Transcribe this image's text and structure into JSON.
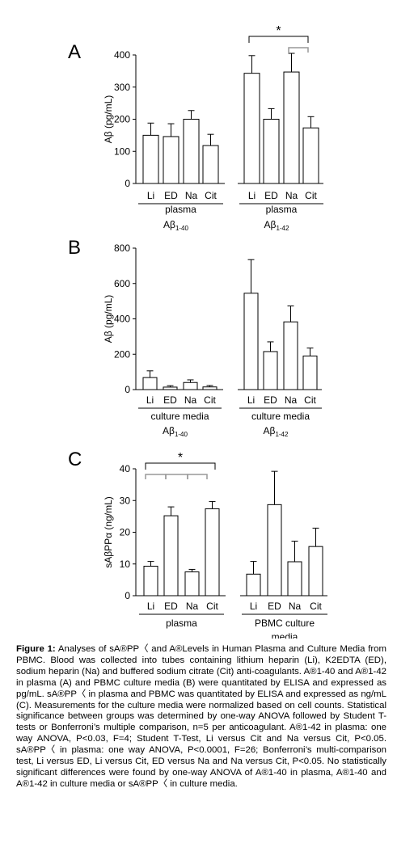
{
  "chart_data": [
    {
      "type": "bar",
      "panel": "A",
      "ylabel": "Aβ (pg/mL)",
      "ylim": [
        0,
        400
      ],
      "yticks": [
        "0",
        "100",
        "200",
        "300",
        "400"
      ],
      "categories": [
        "Li",
        "ED",
        "Na",
        "Cit"
      ],
      "groups": [
        {
          "label": "plasma",
          "sublabel": "Aβ",
          "sub": "1-40",
          "values": [
            150,
            146,
            200,
            118
          ],
          "errors": [
            38,
            40,
            27,
            35
          ]
        },
        {
          "label": "plasma",
          "sublabel": "Aβ",
          "sub": "1-42",
          "values": [
            343,
            200,
            347,
            173
          ],
          "errors": [
            55,
            33,
            58,
            35
          ]
        }
      ],
      "significance": "*"
    },
    {
      "type": "bar",
      "panel": "B",
      "ylabel": "Aβ (pg/mL)",
      "ylim": [
        0,
        800
      ],
      "yticks": [
        "0",
        "200",
        "400",
        "600",
        "800"
      ],
      "categories": [
        "Li",
        "ED",
        "Na",
        "Cit"
      ],
      "groups": [
        {
          "label": "culture media",
          "sublabel": "Aβ",
          "sub": "1-40",
          "values": [
            68,
            14,
            40,
            15
          ],
          "errors": [
            38,
            8,
            15,
            8
          ]
        },
        {
          "label": "culture media",
          "sublabel": "Aβ",
          "sub": "1-42",
          "values": [
            545,
            215,
            383,
            190
          ],
          "errors": [
            190,
            55,
            90,
            45
          ]
        }
      ]
    },
    {
      "type": "bar",
      "panel": "C",
      "ylabel": "sAβPPα (ng/mL)",
      "ylim": [
        0,
        40
      ],
      "yticks": [
        "0",
        "10",
        "20",
        "30",
        "40"
      ],
      "categories": [
        "Li",
        "ED",
        "Na",
        "Cit"
      ],
      "groups": [
        {
          "label": "plasma",
          "sublabel": "",
          "sub": "",
          "values": [
            9.3,
            25.2,
            7.5,
            27.4
          ],
          "errors": [
            1.5,
            2.8,
            0.8,
            2.3
          ]
        },
        {
          "label": "PBMC culture",
          "sublabel": "media",
          "sub": "",
          "values": [
            6.8,
            28.7,
            10.7,
            15.5
          ],
          "errors": [
            4.0,
            10.5,
            6.5,
            5.8
          ]
        }
      ],
      "significance": "*"
    }
  ],
  "caption": {
    "lead": "Figure 1:",
    "text": "Analyses of sA®PP〈 and A®Levels in Human Plasma and Culture Media from PBMC. Blood was collected into tubes containing lithium heparin (Li), K2EDTA (ED), sodium heparin (Na) and buffered sodium citrate (Cit) anti-coagulants. A®1-40 and A®1-42 in plasma (A) and PBMC culture media (B) were quantitated by ELISA and expressed as pg/mL. sA®PP〈 in plasma and PBMC was quantitated by ELISA and expressed as ng/mL (C). Measurements for the culture media were normalized based on cell counts. Statistical significance between groups was determined by one-way ANOVA followed by Student T-tests or Bonferroni’s multiple comparison, n=5 per anticoagulant. A®1-42 in plasma: one way ANOVA, P<0.03, F=4; Student T-Test, Li versus Cit and Na versus Cit, P<0.05. sA®PP〈 in plasma: one way ANOVA, P<0.0001, F=26; Bonferroni’s multi-comparison test, Li versus ED, Li versus Cit, ED versus Na and Na versus Cit, P<0.05. No statistically significant differences were found by one-way ANOVA of A®1-40 in plasma, A®1-40 and A®1-42 in culture media or sA®PP〈 in culture media."
  }
}
